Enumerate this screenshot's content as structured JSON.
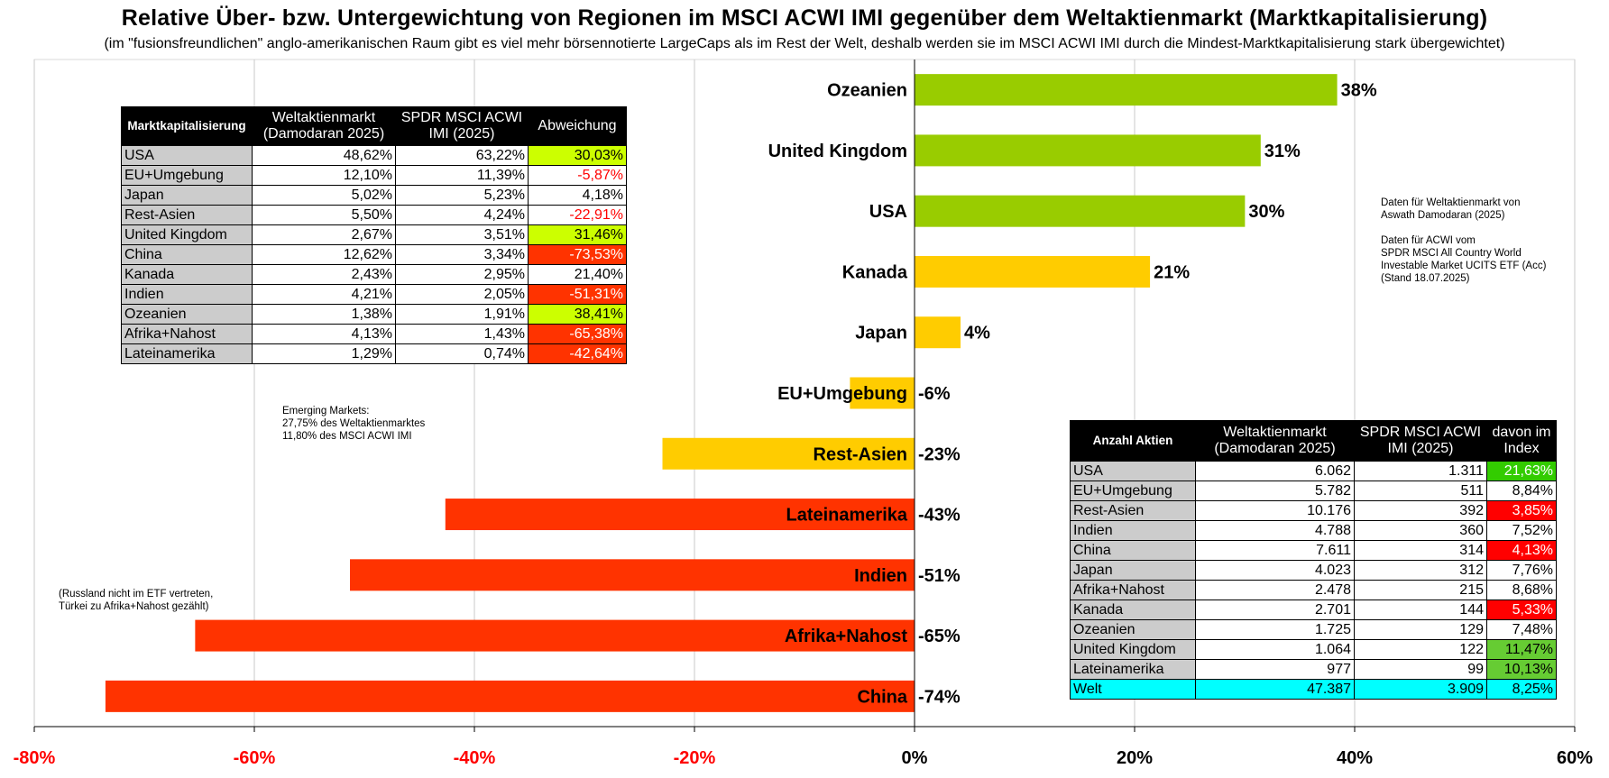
{
  "chart_data": {
    "type": "bar",
    "orientation": "horizontal",
    "title": "Relative Über- bzw. Untergewichtung von Regionen im MSCI ACWI IMI gegenüber dem Weltaktienmarkt (Marktkapitalisierung)",
    "subtitle": "(im \"fusionsfreundlichen\" anglo-amerikanischen Raum gibt es viel mehr börsennotierte LargeCaps als im Rest der Welt, deshalb werden sie im MSCI ACWI IMI durch die Mindest-Marktkapitalisierung stark übergewichtet)",
    "categories": [
      "Ozeanien",
      "United Kingdom",
      "USA",
      "Kanada",
      "Japan",
      "EU+Umgebung",
      "Rest-Asien",
      "Lateinamerika",
      "Indien",
      "Afrika+Nahost",
      "China"
    ],
    "values": [
      38.41,
      31.46,
      30.03,
      21.4,
      4.18,
      -5.87,
      -22.91,
      -42.64,
      -51.31,
      -65.38,
      -73.53
    ],
    "value_labels": [
      "38%",
      "31%",
      "30%",
      "21%",
      "4%",
      "-6%",
      "-23%",
      "-43%",
      "-51%",
      "-65%",
      "-74%"
    ],
    "bar_colors": [
      "#99cc00",
      "#99cc00",
      "#99cc00",
      "#ffcc00",
      "#ffcc00",
      "#ffcc00",
      "#ffcc00",
      "#ff3300",
      "#ff3300",
      "#ff3300",
      "#ff3300"
    ],
    "xlim": [
      -80,
      60
    ],
    "xticks": [
      -80,
      -60,
      -40,
      -20,
      0,
      20,
      40,
      60
    ],
    "xtick_labels": [
      "-80%",
      "-60%",
      "-40%",
      "-20%",
      "0%",
      "20%",
      "40%",
      "60%"
    ],
    "grid": "vertical",
    "colors": {
      "negative_tick": "#ff0000",
      "positive_tick": "#000000"
    }
  },
  "notes": {
    "sources": [
      "Daten für Weltaktienmarkt von",
      "Aswath Damodaran (2025)",
      "",
      "Daten für ACWI vom",
      "SPDR MSCI All Country World",
      "Investable Market UCITS ETF (Acc)",
      "(Stand 18.07.2025)"
    ],
    "emerging": [
      "Emerging Markets:",
      "27,75% des Weltaktienmarktes",
      "11,80% des MSCI ACWI IMI"
    ],
    "russia": [
      "(Russland nicht im ETF vertreten,",
      "Türkei zu Afrika+Nahost gezählt)"
    ]
  },
  "market_table": {
    "headers": [
      "Marktkapitalisierung",
      "Weltaktienmarkt (Damodaran 2025)",
      "SPDR MSCI ACWI IMI (2025)",
      "Abweichung"
    ],
    "rows": [
      {
        "region": "USA",
        "world": "48,62%",
        "acwi": "63,22%",
        "dev": "30,03%",
        "bg": "#ccff00",
        "fg": "#000000"
      },
      {
        "region": "EU+Umgebung",
        "world": "12,10%",
        "acwi": "11,39%",
        "dev": "-5,87%",
        "bg": "#ffffff",
        "fg": "#ff0000"
      },
      {
        "region": "Japan",
        "world": "5,02%",
        "acwi": "5,23%",
        "dev": "4,18%",
        "bg": "#ffffff",
        "fg": "#000000"
      },
      {
        "region": "Rest-Asien",
        "world": "5,50%",
        "acwi": "4,24%",
        "dev": "-22,91%",
        "bg": "#ffffff",
        "fg": "#ff0000"
      },
      {
        "region": "United Kingdom",
        "world": "2,67%",
        "acwi": "3,51%",
        "dev": "31,46%",
        "bg": "#ccff00",
        "fg": "#000000"
      },
      {
        "region": "China",
        "world": "12,62%",
        "acwi": "3,34%",
        "dev": "-73,53%",
        "bg": "#ff3300",
        "fg": "#ffffff"
      },
      {
        "region": "Kanada",
        "world": "2,43%",
        "acwi": "2,95%",
        "dev": "21,40%",
        "bg": "#ffffff",
        "fg": "#000000"
      },
      {
        "region": "Indien",
        "world": "4,21%",
        "acwi": "2,05%",
        "dev": "-51,31%",
        "bg": "#ff3300",
        "fg": "#ffffff"
      },
      {
        "region": "Ozeanien",
        "world": "1,38%",
        "acwi": "1,91%",
        "dev": "38,41%",
        "bg": "#ccff00",
        "fg": "#000000"
      },
      {
        "region": "Afrika+Nahost",
        "world": "4,13%",
        "acwi": "1,43%",
        "dev": "-65,38%",
        "bg": "#ff3300",
        "fg": "#ffffff"
      },
      {
        "region": "Lateinamerika",
        "world": "1,29%",
        "acwi": "0,74%",
        "dev": "-42,64%",
        "bg": "#ff3300",
        "fg": "#ffffff"
      }
    ]
  },
  "stocks_table": {
    "headers": [
      "Anzahl Aktien",
      "Weltaktienmarkt (Damodaran 2025)",
      "SPDR MSCI ACWI IMI (2025)",
      "davon im Index"
    ],
    "rows": [
      {
        "region": "USA",
        "world": "6.062",
        "acwi": "1.311",
        "share": "21,63%",
        "bg": "#33cc00",
        "fg": "#ffffff"
      },
      {
        "region": "EU+Umgebung",
        "world": "5.782",
        "acwi": "511",
        "share": "8,84%",
        "bg": "#ffffff",
        "fg": "#000000"
      },
      {
        "region": "Rest-Asien",
        "world": "10.176",
        "acwi": "392",
        "share": "3,85%",
        "bg": "#ff0000",
        "fg": "#ffffff"
      },
      {
        "region": "Indien",
        "world": "4.788",
        "acwi": "360",
        "share": "7,52%",
        "bg": "#ffffff",
        "fg": "#000000"
      },
      {
        "region": "China",
        "world": "7.611",
        "acwi": "314",
        "share": "4,13%",
        "bg": "#ff0000",
        "fg": "#ffffff"
      },
      {
        "region": "Japan",
        "world": "4.023",
        "acwi": "312",
        "share": "7,76%",
        "bg": "#ffffff",
        "fg": "#000000"
      },
      {
        "region": "Afrika+Nahost",
        "world": "2.478",
        "acwi": "215",
        "share": "8,68%",
        "bg": "#ffffff",
        "fg": "#000000"
      },
      {
        "region": "Kanada",
        "world": "2.701",
        "acwi": "144",
        "share": "5,33%",
        "bg": "#ff0000",
        "fg": "#ffffff"
      },
      {
        "region": "Ozeanien",
        "world": "1.725",
        "acwi": "129",
        "share": "7,48%",
        "bg": "#ffffff",
        "fg": "#000000"
      },
      {
        "region": "United Kingdom",
        "world": "1.064",
        "acwi": "122",
        "share": "11,47%",
        "bg": "#66cc33",
        "fg": "#000000"
      },
      {
        "region": "Lateinamerika",
        "world": "977",
        "acwi": "99",
        "share": "10,13%",
        "bg": "#66cc33",
        "fg": "#000000"
      }
    ],
    "total": {
      "region": "Welt",
      "world": "47.387",
      "acwi": "3.909",
      "share": "8,25%"
    }
  }
}
